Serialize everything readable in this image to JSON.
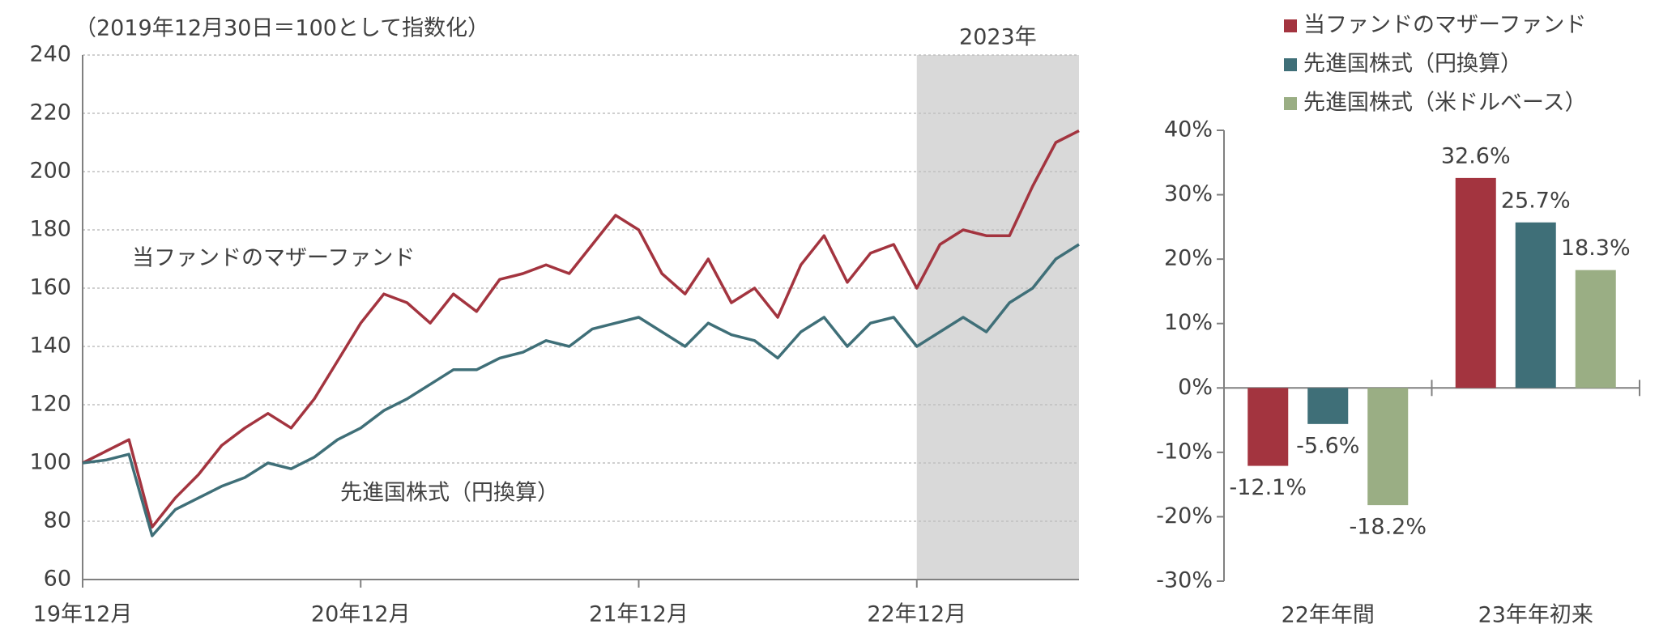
{
  "chart_data": [
    {
      "type": "line",
      "subtitle": "（2019年12月30日＝100として指数化）",
      "x": [
        "19年12月",
        null,
        null,
        null,
        null,
        null,
        null,
        null,
        null,
        null,
        null,
        null,
        "20年12月",
        null,
        null,
        null,
        null,
        null,
        null,
        null,
        null,
        null,
        null,
        null,
        "21年12月",
        null,
        null,
        null,
        null,
        null,
        null,
        null,
        null,
        null,
        null,
        null,
        "22年12月",
        null,
        null,
        null,
        null,
        null,
        null,
        null
      ],
      "series": [
        {
          "name": "当ファンドのマザーファンド",
          "color": "#a3343f",
          "values": [
            100,
            104,
            108,
            78,
            88,
            96,
            106,
            112,
            117,
            112,
            122,
            135,
            148,
            158,
            155,
            148,
            158,
            152,
            163,
            165,
            168,
            165,
            175,
            185,
            180,
            165,
            158,
            170,
            155,
            160,
            150,
            168,
            178,
            162,
            172,
            175,
            160,
            175,
            180,
            178,
            178,
            195,
            210,
            214
          ]
        },
        {
          "name": "先進国株式（円換算）",
          "color": "#3f6f78",
          "values": [
            100,
            101,
            103,
            75,
            84,
            88,
            92,
            95,
            100,
            98,
            102,
            108,
            112,
            118,
            122,
            127,
            132,
            132,
            136,
            138,
            142,
            140,
            146,
            148,
            150,
            145,
            140,
            148,
            144,
            142,
            136,
            145,
            150,
            140,
            148,
            150,
            140,
            145,
            150,
            145,
            155,
            160,
            170,
            175
          ]
        }
      ],
      "ylim": [
        60,
        240
      ],
      "yticks": [
        60,
        80,
        100,
        120,
        140,
        160,
        180,
        200,
        220,
        240
      ],
      "grid": true,
      "shaded_region": {
        "start": "22年12月",
        "label": "2023年",
        "color": "#d9d9d9"
      }
    },
    {
      "type": "bar",
      "categories": [
        "22年年間",
        "23年年初来"
      ],
      "series": [
        {
          "name": "当ファンドのマザーファンド",
          "color": "#a3343f",
          "values": [
            -12.1,
            32.6
          ],
          "value_labels": [
            "-12.1%",
            "32.6%"
          ]
        },
        {
          "name": "先進国株式（円換算）",
          "color": "#3f6f78",
          "values": [
            -5.6,
            25.7
          ],
          "value_labels": [
            "-5.6%",
            "25.7%"
          ]
        },
        {
          "name": "先進国株式（米ドルベース）",
          "color": "#9aae84",
          "values": [
            -18.2,
            18.3
          ],
          "value_labels": [
            "-18.2%",
            "18.3%"
          ]
        }
      ],
      "ylim": [
        -30,
        40
      ],
      "yticks": [
        {
          "value": -30,
          "label": "-30%"
        },
        {
          "value": -20,
          "label": "-20%"
        },
        {
          "value": -10,
          "label": "-10%"
        },
        {
          "value": 0,
          "label": "0%"
        },
        {
          "value": 10,
          "label": "10%"
        },
        {
          "value": 20,
          "label": "20%"
        },
        {
          "value": 30,
          "label": "30%"
        },
        {
          "value": 40,
          "label": "40%"
        }
      ],
      "legend": "top"
    }
  ]
}
